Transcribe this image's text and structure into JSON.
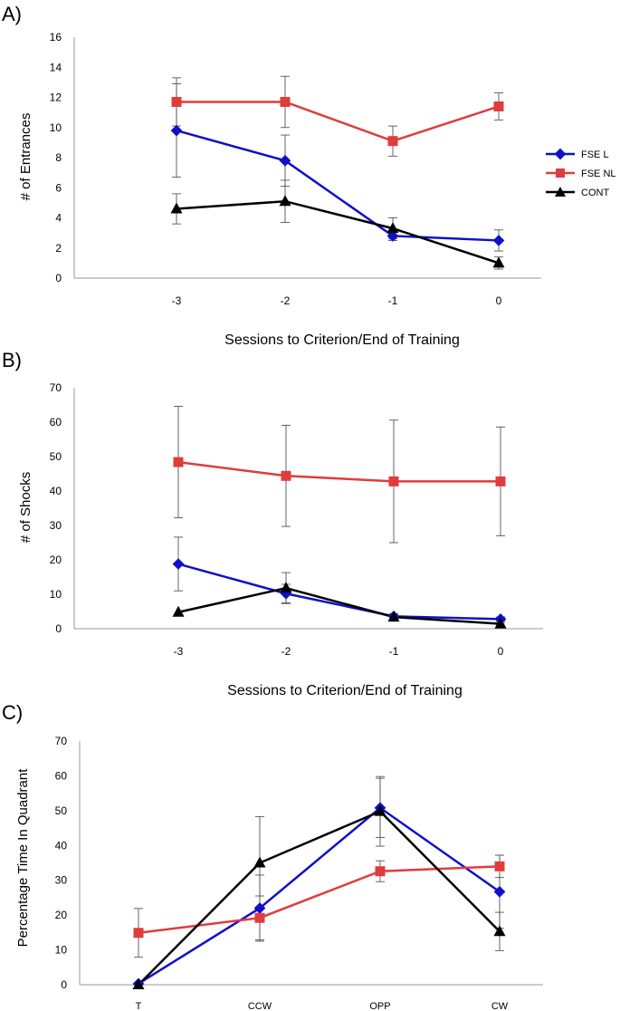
{
  "chart_data": [
    {
      "panel_label": "A)",
      "type": "line",
      "categories": [
        "-3",
        "-2",
        "-1",
        "0"
      ],
      "ylabel": "# of Entrances",
      "xlabel": "Sessions to Criterion/End of Training",
      "ylim": [
        0,
        16
      ],
      "yticks": [
        "0",
        "2",
        "4",
        "6",
        "8",
        "10",
        "12",
        "14",
        "16"
      ],
      "series": [
        {
          "name": "FSE L",
          "color": "#1010c8",
          "marker": "diamond",
          "values": [
            9.8,
            7.8,
            2.8,
            2.5
          ],
          "errors": [
            3.1,
            1.7,
            0.3,
            0.7
          ]
        },
        {
          "name": "FSE NL",
          "color": "#e03c3c",
          "marker": "square",
          "values": [
            11.7,
            11.7,
            9.1,
            11.4
          ],
          "errors": [
            1.6,
            1.7,
            1.0,
            0.9
          ]
        },
        {
          "name": "CONT",
          "color": "#000000",
          "marker": "triangle",
          "values": [
            4.6,
            5.1,
            3.3,
            1.0
          ],
          "errors": [
            1.0,
            1.4,
            0.7,
            0.4
          ]
        }
      ],
      "legend": [
        "FSE L",
        "FSE NL",
        "CONT"
      ]
    },
    {
      "panel_label": "B)",
      "type": "line",
      "categories": [
        "-3",
        "-2",
        "-1",
        "0"
      ],
      "ylabel": "# of Shocks",
      "xlabel": "Sessions to Criterion/End of Training",
      "ylim": [
        0,
        70
      ],
      "yticks": [
        "0",
        "10",
        "20",
        "30",
        "40",
        "50",
        "60",
        "70"
      ],
      "series": [
        {
          "name": "FSE L",
          "color": "#1010c8",
          "marker": "diamond",
          "values": [
            18.8,
            10.2,
            3.6,
            2.8
          ],
          "errors": [
            7.8,
            2.7,
            0.8,
            0.6
          ]
        },
        {
          "name": "FSE NL",
          "color": "#e03c3c",
          "marker": "square",
          "values": [
            48.4,
            44.4,
            42.8,
            42.8
          ],
          "errors": [
            16.2,
            14.7,
            17.8,
            15.8
          ]
        },
        {
          "name": "CONT",
          "color": "#000000",
          "marker": "triangle",
          "values": [
            4.8,
            11.8,
            3.4,
            1.4
          ],
          "errors": [
            0,
            4.5,
            0.6,
            0.4
          ]
        }
      ]
    },
    {
      "panel_label": "C)",
      "type": "line",
      "categories": [
        "T",
        "CCW",
        "OPP",
        "CW"
      ],
      "ylabel": "Percentage Time In Quadrant",
      "xlabel": "",
      "ylim": [
        0,
        70
      ],
      "yticks": [
        "0",
        "10",
        "20",
        "30",
        "40",
        "50",
        "60",
        "70"
      ],
      "series": [
        {
          "name": "FSE L",
          "color": "#1010c8",
          "marker": "diamond",
          "values": [
            0.3,
            22.0,
            50.8,
            26.7
          ],
          "errors": [
            0,
            9.5,
            8.5,
            10.5
          ]
        },
        {
          "name": "FSE NL",
          "color": "#e03c3c",
          "marker": "square",
          "values": [
            14.9,
            19.2,
            32.6,
            34.0
          ],
          "errors": [
            7.0,
            6.3,
            3.0,
            3.2
          ]
        },
        {
          "name": "CONT",
          "color": "#000000",
          "marker": "triangle",
          "values": [
            0,
            35.0,
            49.8,
            15.3
          ],
          "errors": [
            0,
            13.3,
            10.0,
            5.5
          ]
        }
      ]
    }
  ]
}
